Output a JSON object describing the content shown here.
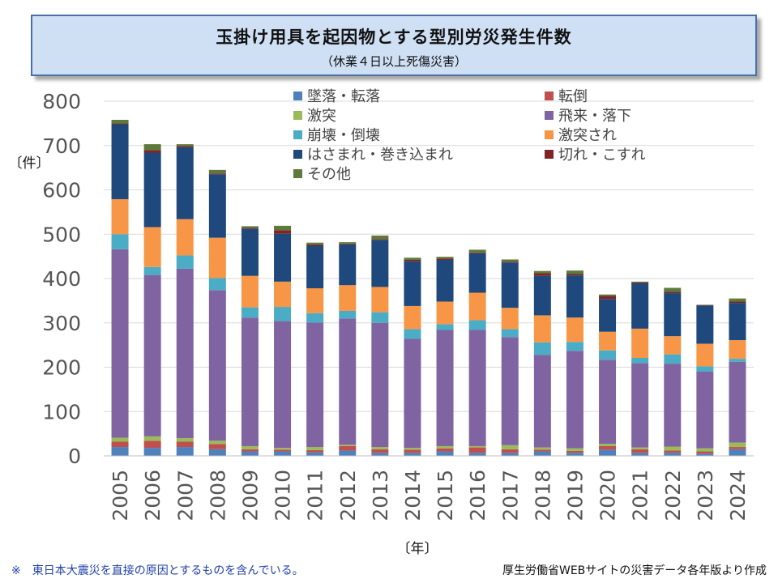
{
  "header": {
    "title": "玉掛け用具を起因物とする型別労災発生件数",
    "subtitle": "（休業４日以上死傷災害）"
  },
  "footer": {
    "note": "※　東日本大震災を直接の原因とするものを含んでいる。",
    "source": "厚生労働省WEBサイトの災害データ各年版より作成"
  },
  "chart_data": {
    "type": "bar",
    "stacked": true,
    "title": "玉掛け用具を起因物とする型別労災発生件数",
    "subtitle": "（休業４日以上死傷災害）",
    "xlabel": "〔年〕",
    "ylabel": "〔件〕",
    "ylim": [
      0,
      800
    ],
    "yticks": [
      0,
      100,
      200,
      300,
      400,
      500,
      600,
      700,
      800
    ],
    "grid": true,
    "legend_position": "top",
    "categories": [
      "2005",
      "2006",
      "2007",
      "2008",
      "2009",
      "2010",
      "2011",
      "2012",
      "2013",
      "2014",
      "2015",
      "2016",
      "2017",
      "2018",
      "2019",
      "2020",
      "2021",
      "2022",
      "2023",
      "2024"
    ],
    "series": [
      {
        "name": "墜落・転落",
        "color": "#4f81bd",
        "values": [
          20,
          18,
          20,
          15,
          10,
          10,
          8,
          12,
          7,
          7,
          10,
          7,
          7,
          10,
          7,
          14,
          7,
          7,
          5,
          15
        ]
      },
      {
        "name": "転倒",
        "color": "#c0504d",
        "values": [
          12,
          16,
          12,
          12,
          5,
          4,
          5,
          10,
          8,
          7,
          7,
          12,
          8,
          4,
          4,
          8,
          8,
          5,
          5,
          5
        ]
      },
      {
        "name": "激突",
        "color": "#9bbb59",
        "values": [
          9,
          10,
          8,
          7,
          7,
          4,
          7,
          3,
          5,
          4,
          5,
          3,
          9,
          5,
          6,
          5,
          4,
          9,
          7,
          10
        ]
      },
      {
        "name": "飛来・落下",
        "color": "#8064a2",
        "values": [
          425,
          364,
          382,
          340,
          290,
          286,
          281,
          285,
          280,
          246,
          262,
          262,
          244,
          209,
          220,
          190,
          190,
          187,
          173,
          182
        ]
      },
      {
        "name": "崩壊・倒壊",
        "color": "#4bacc6",
        "values": [
          34,
          18,
          30,
          27,
          23,
          32,
          21,
          17,
          24,
          22,
          13,
          22,
          18,
          28,
          20,
          21,
          12,
          21,
          12,
          7
        ]
      },
      {
        "name": "激突され",
        "color": "#f79646",
        "values": [
          79,
          90,
          82,
          91,
          71,
          57,
          56,
          58,
          57,
          52,
          51,
          62,
          48,
          61,
          55,
          42,
          66,
          41,
          51,
          42
        ]
      },
      {
        "name": "はさまれ・巻き込まれ",
        "color": "#1f497d",
        "values": [
          169,
          168,
          162,
          143,
          106,
          108,
          96,
          92,
          106,
          101,
          94,
          89,
          102,
          89,
          95,
          74,
          102,
          97,
          86,
          84
        ]
      },
      {
        "name": "切れ・こすれ",
        "color": "#7f2525",
        "values": [
          2,
          6,
          3,
          2,
          2,
          8,
          3,
          2,
          2,
          3,
          3,
          2,
          2,
          6,
          3,
          7,
          2,
          3,
          1,
          3
        ]
      },
      {
        "name": "その他",
        "color": "#5d7a3a",
        "values": [
          8,
          13,
          4,
          8,
          4,
          10,
          4,
          3,
          8,
          5,
          4,
          6,
          5,
          5,
          8,
          3,
          2,
          9,
          1,
          7
        ]
      }
    ]
  }
}
